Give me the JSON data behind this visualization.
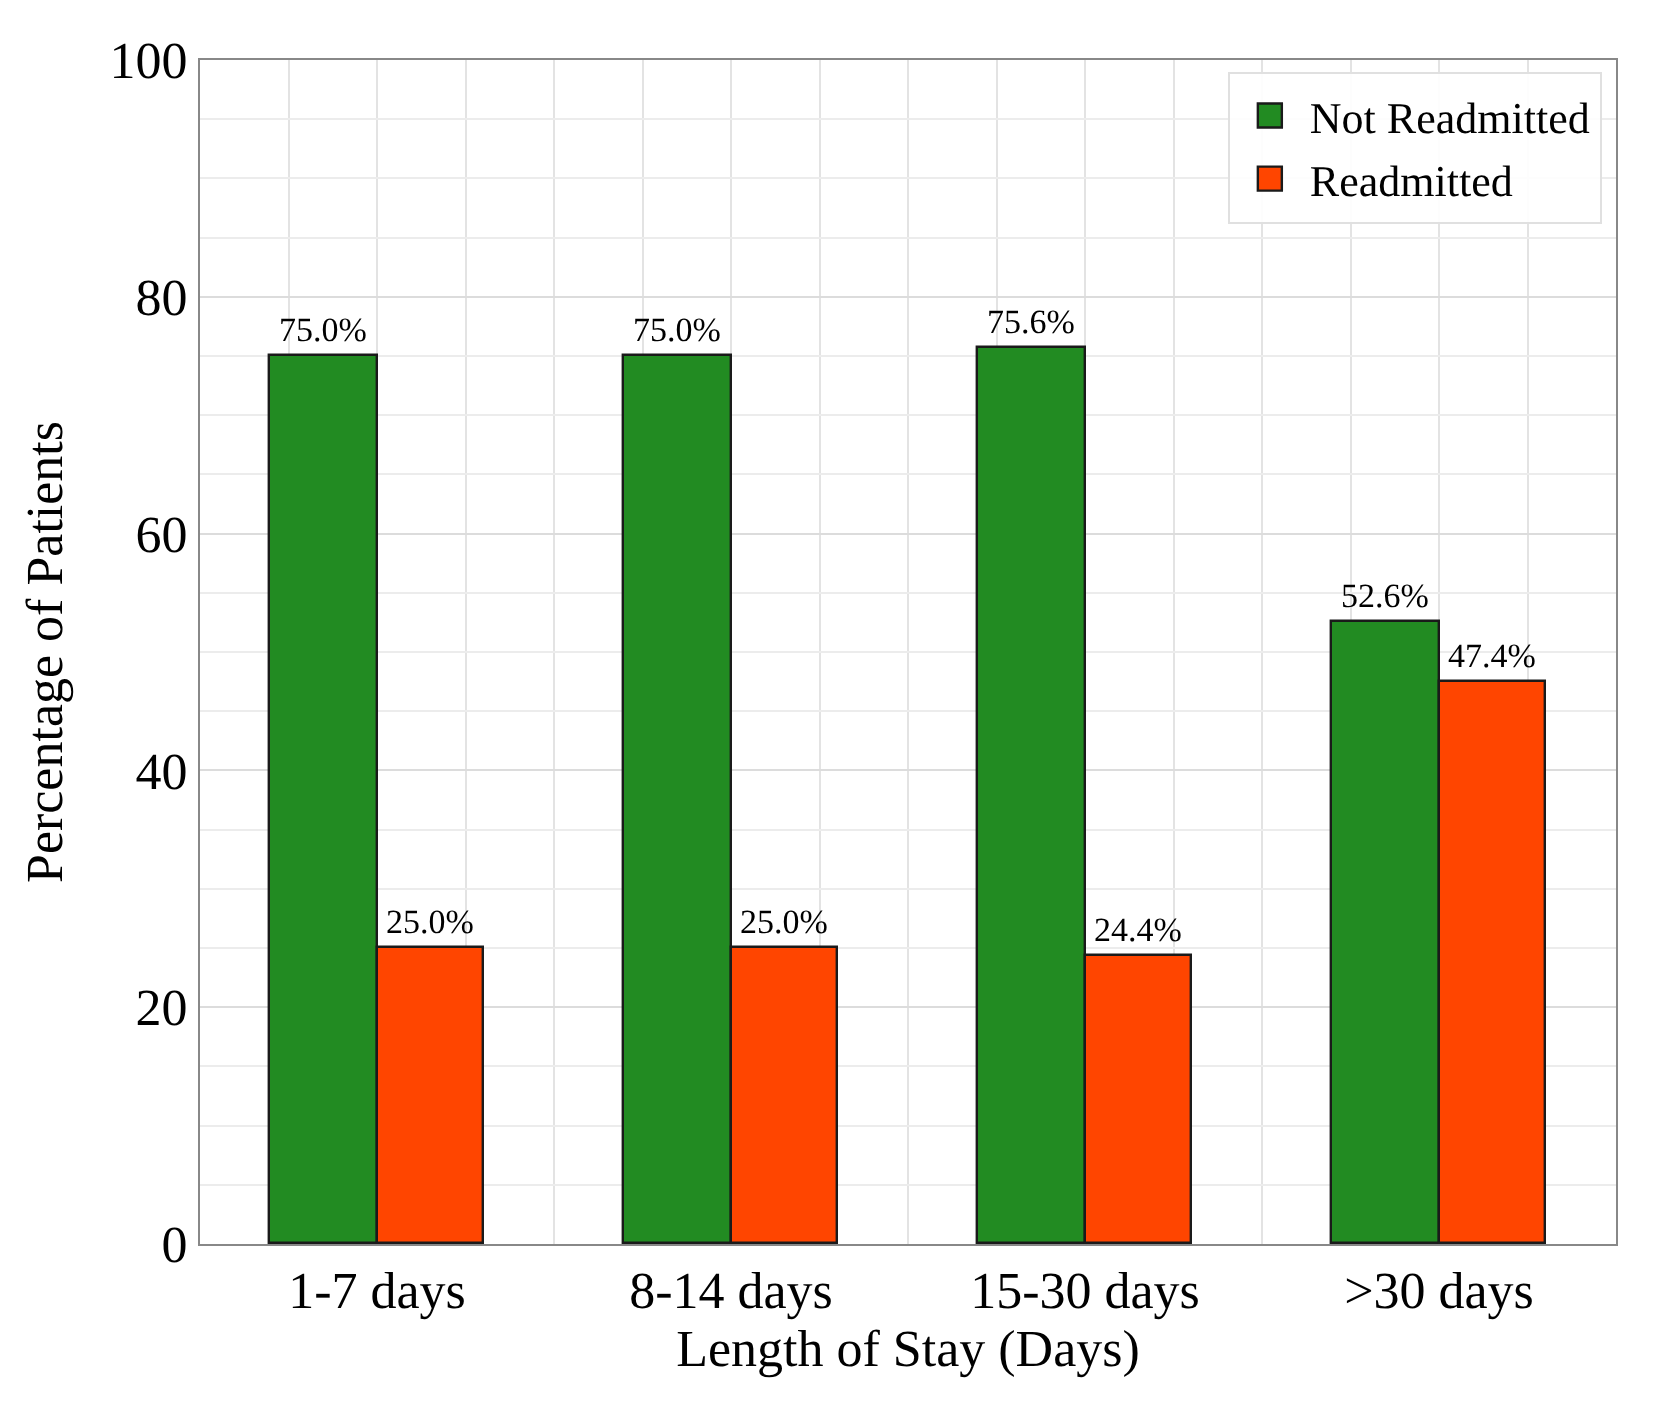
{
  "chart_data": {
    "type": "bar",
    "xlabel": "Length of Stay (Days)",
    "ylabel": "Percentage of Patients",
    "categories": [
      "1-7 days",
      "8-14 days",
      "15-30 days",
      ">30 days"
    ],
    "series": [
      {
        "name": "Not Readmitted",
        "color": "#228b22",
        "values": [
          75.0,
          75.0,
          75.6,
          52.6
        ],
        "value_labels": [
          "75.0%",
          "75.0%",
          "75.6%",
          "52.6%"
        ]
      },
      {
        "name": "Readmitted",
        "color": "#ff4500",
        "values": [
          25.0,
          25.0,
          24.4,
          47.4
        ],
        "value_labels": [
          "25.0%",
          "25.0%",
          "24.4%",
          "47.4%"
        ]
      }
    ],
    "ylim": [
      0,
      100
    ],
    "yticks": [
      0,
      20,
      40,
      60,
      80,
      100
    ],
    "grid": true,
    "legend": "top right"
  }
}
